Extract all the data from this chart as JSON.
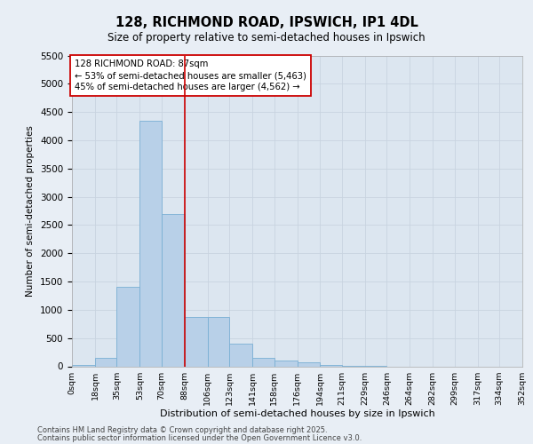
{
  "title_line1": "128, RICHMOND ROAD, IPSWICH, IP1 4DL",
  "title_line2": "Size of property relative to semi-detached houses in Ipswich",
  "xlabel": "Distribution of semi-detached houses by size in Ipswich",
  "ylabel": "Number of semi-detached properties",
  "footnote1": "Contains HM Land Registry data © Crown copyright and database right 2025.",
  "footnote2": "Contains public sector information licensed under the Open Government Licence v3.0.",
  "property_label": "128 RICHMOND ROAD: 87sqm",
  "pct_smaller": 53,
  "pct_larger": 45,
  "count_smaller": 5463,
  "count_larger": 4562,
  "bin_edges": [
    0,
    18,
    35,
    53,
    70,
    88,
    106,
    123,
    141,
    158,
    176,
    194,
    211,
    229,
    246,
    264,
    282,
    299,
    317,
    334,
    352
  ],
  "bin_labels": [
    "0sqm",
    "18sqm",
    "35sqm",
    "53sqm",
    "70sqm",
    "88sqm",
    "106sqm",
    "123sqm",
    "141sqm",
    "158sqm",
    "176sqm",
    "194sqm",
    "211sqm",
    "229sqm",
    "246sqm",
    "264sqm",
    "282sqm",
    "299sqm",
    "317sqm",
    "334sqm",
    "352sqm"
  ],
  "bar_heights": [
    25,
    150,
    1400,
    4350,
    2700,
    870,
    870,
    400,
    150,
    100,
    75,
    25,
    5,
    2,
    0,
    0,
    0,
    0,
    0,
    0
  ],
  "bar_color": "#b8d0e8",
  "bar_edge_color": "#7aafd4",
  "vline_color": "#cc0000",
  "vline_x": 88,
  "ylim": [
    0,
    5500
  ],
  "yticks": [
    0,
    500,
    1000,
    1500,
    2000,
    2500,
    3000,
    3500,
    4000,
    4500,
    5000,
    5500
  ],
  "grid_color": "#c8d4e0",
  "bg_color": "#e8eef5",
  "plot_bg_color": "#dce6f0"
}
